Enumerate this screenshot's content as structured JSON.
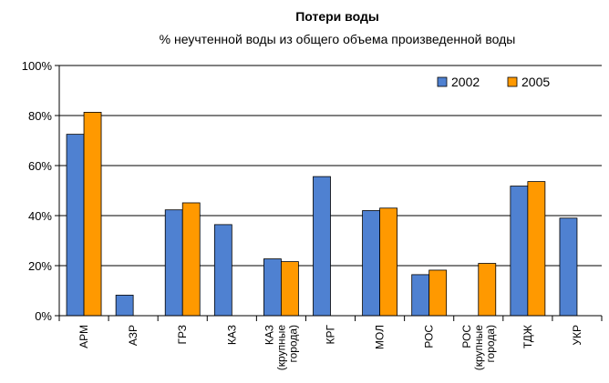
{
  "chart_data": {
    "type": "bar",
    "title": "Потери воды",
    "subtitle": "% неучтенной воды из общего объема произведенной воды",
    "xlabel": "",
    "ylabel": "",
    "ylim": [
      0,
      100
    ],
    "yticks": [
      0,
      20,
      40,
      60,
      80,
      100
    ],
    "ytick_labels": [
      "0%",
      "20%",
      "40%",
      "60%",
      "80%",
      "100%"
    ],
    "grid": true,
    "legend_position": "top-right",
    "categories": [
      [
        "АРМ"
      ],
      [
        "АЗР"
      ],
      [
        "ГРЗ"
      ],
      [
        "КАЗ"
      ],
      [
        "КАЗ",
        "(крупные",
        "города)"
      ],
      [
        "КРГ"
      ],
      [
        "МОЛ"
      ],
      [
        "РОС"
      ],
      [
        "РОС",
        "(крупные",
        "города)"
      ],
      [
        "ТДЖ"
      ],
      [
        "УКР"
      ]
    ],
    "series": [
      {
        "name": "2002",
        "color": "#4F81D1",
        "values": [
          72.5,
          8.2,
          42.3,
          36.4,
          22.7,
          55.6,
          42.0,
          16.4,
          null,
          51.8,
          39.0
        ]
      },
      {
        "name": "2005",
        "color": "#FF9900",
        "values": [
          81.3,
          null,
          45.1,
          null,
          21.6,
          null,
          43.0,
          18.2,
          20.9,
          53.6,
          null
        ]
      }
    ]
  }
}
